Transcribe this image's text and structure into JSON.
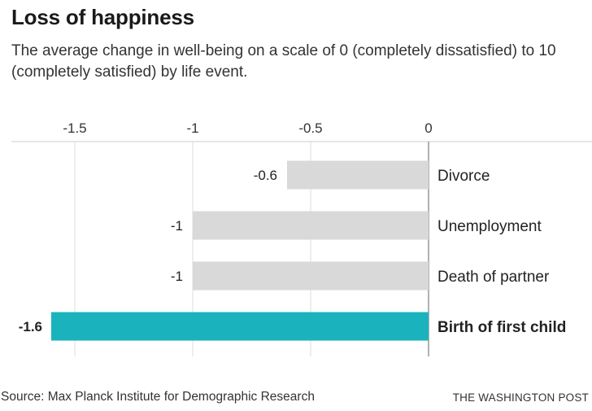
{
  "header": {
    "title": "Loss of happiness",
    "subtitle": "The average change in well-being on a scale of 0 (completely dissatisfied) to 10 (completely satisfied) by life event."
  },
  "footer": {
    "source": "Source: Max Planck Institute for Demographic Research",
    "brand": "THE WASHINGTON POST"
  },
  "chart_data": {
    "type": "bar",
    "orientation": "horizontal",
    "categories": [
      "Divorce",
      "Unemployment",
      "Death of partner",
      "Birth of first child"
    ],
    "values": [
      -0.6,
      -1,
      -1,
      -1.6
    ],
    "value_labels": [
      "-0.6",
      "-1",
      "-1",
      "-1.6"
    ],
    "highlighted_category": "Birth of first child",
    "xlim": [
      -1.6,
      0
    ],
    "ticks": [
      -1.5,
      -1,
      -0.5,
      0
    ],
    "tick_labels": [
      "-1.5",
      "-1",
      "-0.5",
      "0"
    ],
    "x_axis_position": "top",
    "grid": true,
    "colors": {
      "bar": "#d9d9d9",
      "highlight": "#1ab3bd",
      "grid": "#dddddd",
      "zero_line": "#999999"
    }
  }
}
